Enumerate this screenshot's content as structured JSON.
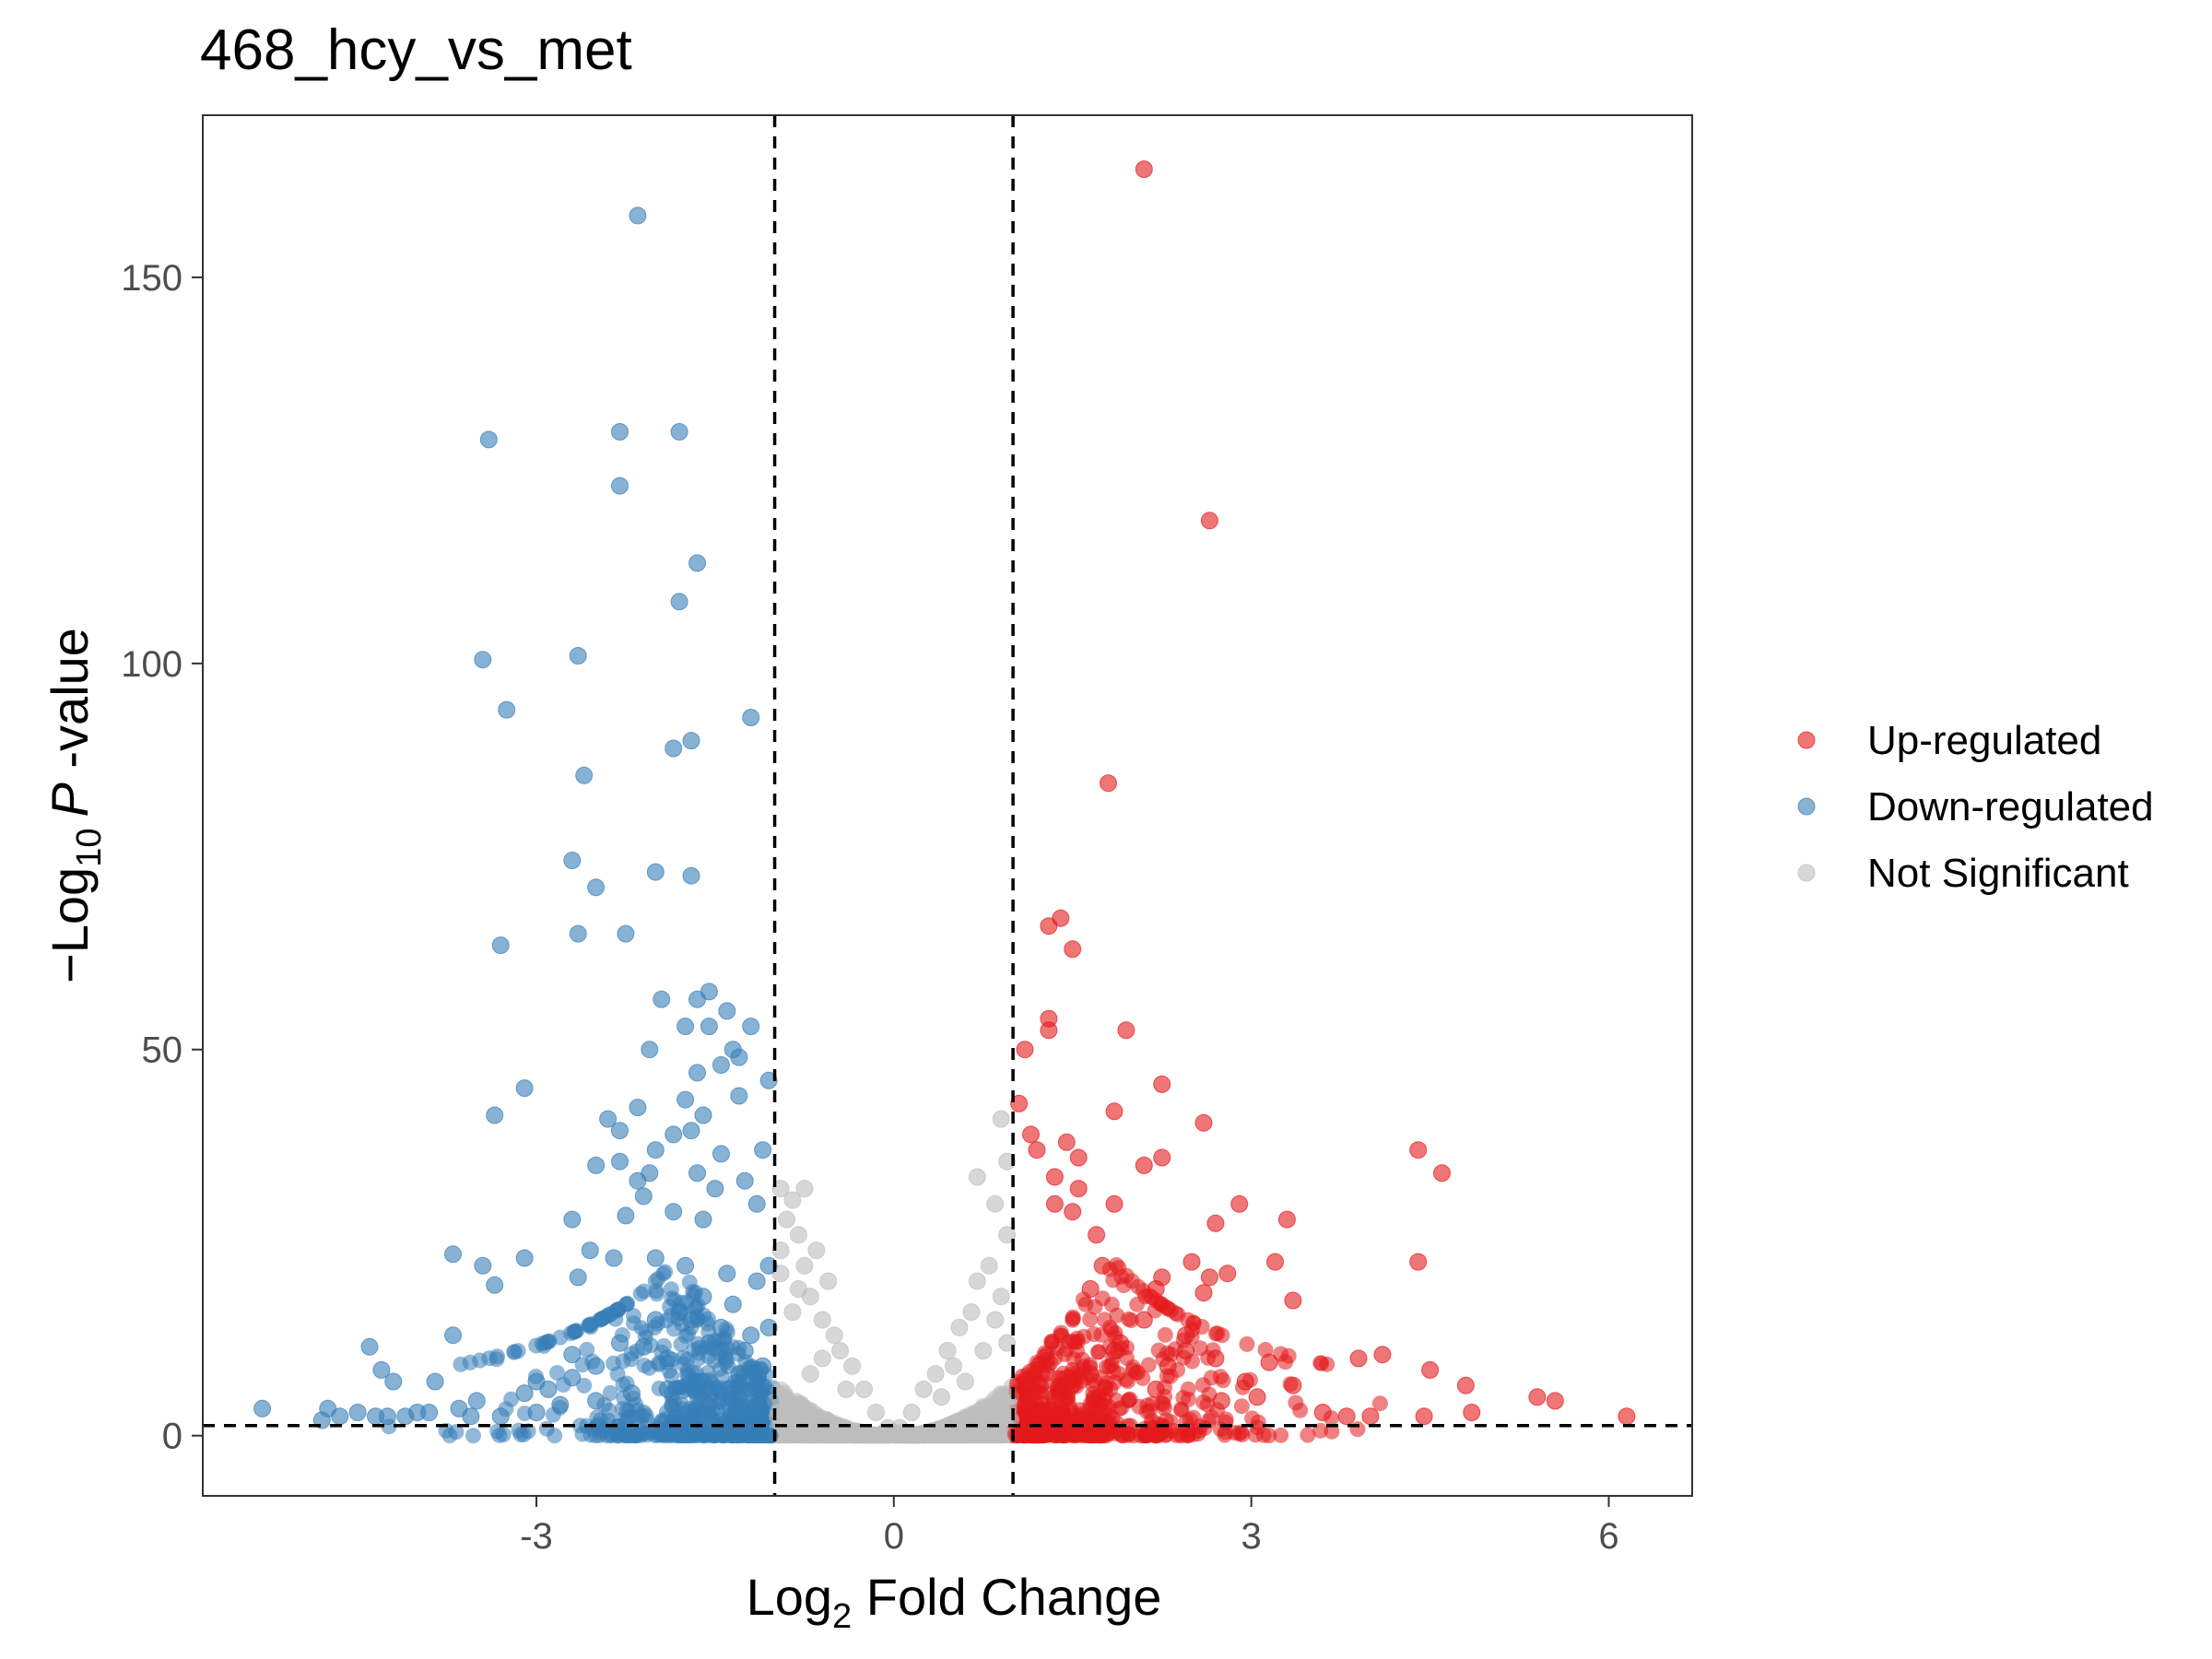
{
  "chart_data": {
    "type": "scatter",
    "title": "468_hcy_vs_met",
    "xlabel": {
      "prefix": "Log",
      "sub": "2",
      "suffix": " Fold Change"
    },
    "ylabel": {
      "prefix": "−Log",
      "sub": "10",
      "italic": "P",
      "suffix": " -value"
    },
    "xlim": [
      -5.8,
      6.7
    ],
    "ylim": [
      -7.8,
      171
    ],
    "xticks": [
      -3,
      0,
      3,
      6
    ],
    "xtick_labels": [
      "-3",
      "0",
      "3",
      "6"
    ],
    "yticks": [
      0,
      50,
      100,
      150
    ],
    "ytick_labels": [
      "0",
      "50",
      "100",
      "150"
    ],
    "fc_threshold": [
      -1,
      1
    ],
    "p_threshold": 1.3,
    "grid": false,
    "legend_position": "right",
    "colors": {
      "up": "#e41a1c",
      "down": "#377eb8",
      "ns": "#bdbdbd"
    },
    "series": [
      {
        "name": "Up-regulated",
        "key": "up",
        "points": [
          [
            2.1,
            164
          ],
          [
            2.65,
            118.5
          ],
          [
            1.8,
            84.5
          ],
          [
            1.4,
            67
          ],
          [
            1.3,
            66
          ],
          [
            1.5,
            63
          ],
          [
            1.3,
            54
          ],
          [
            1.3,
            52.5
          ],
          [
            1.95,
            52.5
          ],
          [
            1.1,
            50
          ],
          [
            2.25,
            45.5
          ],
          [
            1.05,
            43
          ],
          [
            2.6,
            40.5
          ],
          [
            1.85,
            42
          ],
          [
            1.15,
            39
          ],
          [
            1.2,
            37
          ],
          [
            1.45,
            38
          ],
          [
            1.55,
            36
          ],
          [
            2.1,
            35
          ],
          [
            2.25,
            36
          ],
          [
            4.4,
            37
          ],
          [
            4.6,
            34
          ],
          [
            1.35,
            33.5
          ],
          [
            1.55,
            32
          ],
          [
            1.85,
            30
          ],
          [
            2.9,
            30
          ],
          [
            1.35,
            30
          ],
          [
            1.5,
            29
          ],
          [
            3.3,
            28
          ],
          [
            2.7,
            27.5
          ],
          [
            1.7,
            26
          ],
          [
            4.4,
            22.5
          ],
          [
            3.2,
            22.5
          ],
          [
            2.5,
            22.5
          ],
          [
            1.75,
            22
          ],
          [
            2.25,
            20.5
          ],
          [
            2.8,
            21
          ],
          [
            2.2,
            19
          ],
          [
            2.65,
            20.5
          ],
          [
            3.35,
            17.5
          ],
          [
            2.6,
            18.5
          ],
          [
            1.65,
            19
          ],
          [
            4.1,
            10.5
          ],
          [
            2.45,
            11
          ],
          [
            3.9,
            10
          ],
          [
            4.5,
            8.5
          ],
          [
            4.8,
            6.5
          ],
          [
            5.4,
            5
          ],
          [
            5.55,
            4.5
          ],
          [
            6.15,
            2.5
          ],
          [
            3.6,
            3
          ],
          [
            3.8,
            2.5
          ],
          [
            4.0,
            2.5
          ],
          [
            4.45,
            2.5
          ],
          [
            4.85,
            3
          ],
          [
            3.05,
            5
          ],
          [
            2.95,
            7
          ],
          [
            3.35,
            6.5
          ],
          [
            2.75,
            4.5
          ],
          [
            2.2,
            6
          ],
          [
            1.65,
            8
          ],
          [
            1.9,
            12
          ],
          [
            2.3,
            9
          ],
          [
            3.15,
            9.5
          ],
          [
            2.7,
            10
          ],
          [
            2.1,
            15
          ],
          [
            1.85,
            11
          ],
          [
            2.45,
            13
          ]
        ]
      },
      {
        "name": "Down-regulated",
        "key": "down",
        "points": [
          [
            -2.15,
            158
          ],
          [
            -2.3,
            130
          ],
          [
            -1.8,
            130
          ],
          [
            -3.4,
            129
          ],
          [
            -2.3,
            123
          ],
          [
            -1.65,
            113
          ],
          [
            -1.8,
            108
          ],
          [
            -3.45,
            100.5
          ],
          [
            -2.65,
            101
          ],
          [
            -3.25,
            94
          ],
          [
            -1.2,
            93
          ],
          [
            -1.7,
            90
          ],
          [
            -1.85,
            89
          ],
          [
            -2.6,
            85.5
          ],
          [
            -2.7,
            74.5
          ],
          [
            -2.0,
            73
          ],
          [
            -1.7,
            72.5
          ],
          [
            -2.5,
            71
          ],
          [
            -2.65,
            65
          ],
          [
            -2.25,
            65
          ],
          [
            -3.3,
            63.5
          ],
          [
            -1.55,
            57.5
          ],
          [
            -1.95,
            56.5
          ],
          [
            -1.65,
            56.5
          ],
          [
            -1.4,
            55
          ],
          [
            -1.75,
            53
          ],
          [
            -1.55,
            53
          ],
          [
            -1.2,
            53
          ],
          [
            -1.35,
            50
          ],
          [
            -2.05,
            50
          ],
          [
            -1.65,
            47
          ],
          [
            -1.45,
            48
          ],
          [
            -1.3,
            49
          ],
          [
            -3.1,
            45
          ],
          [
            -1.05,
            46
          ],
          [
            -1.3,
            44
          ],
          [
            -1.75,
            43.5
          ],
          [
            -2.15,
            42.5
          ],
          [
            -3.35,
            41.5
          ],
          [
            -1.6,
            41.5
          ],
          [
            -2.4,
            41
          ],
          [
            -1.7,
            39.5
          ],
          [
            -2.3,
            39.5
          ],
          [
            -1.85,
            39
          ],
          [
            -1.1,
            37
          ],
          [
            -2.0,
            37
          ],
          [
            -1.45,
            36.5
          ],
          [
            -2.5,
            35
          ],
          [
            -2.3,
            35.5
          ],
          [
            -1.65,
            34
          ],
          [
            -2.05,
            34
          ],
          [
            -1.25,
            33
          ],
          [
            -2.15,
            33
          ],
          [
            -1.5,
            32
          ],
          [
            -2.1,
            31
          ],
          [
            -1.15,
            30
          ],
          [
            -2.7,
            28
          ],
          [
            -1.85,
            29
          ],
          [
            -2.25,
            28.5
          ],
          [
            -1.6,
            28
          ],
          [
            -2.55,
            24
          ],
          [
            -3.7,
            23.5
          ],
          [
            -3.1,
            23
          ],
          [
            -2.0,
            23
          ],
          [
            -2.35,
            23
          ],
          [
            -3.45,
            22
          ],
          [
            -1.75,
            22
          ],
          [
            -2.65,
            20.5
          ],
          [
            -3.35,
            19.5
          ],
          [
            -4.4,
            11.5
          ],
          [
            -3.7,
            13
          ],
          [
            -4.3,
            8.5
          ],
          [
            -4.2,
            7
          ],
          [
            -3.85,
            7
          ],
          [
            -3.0,
            7
          ],
          [
            -2.7,
            7.5
          ],
          [
            -3.1,
            5.5
          ],
          [
            -3.5,
            4.5
          ],
          [
            -3.65,
            3.5
          ],
          [
            -3.9,
            3
          ],
          [
            -4.1,
            2.5
          ],
          [
            -4.25,
            2.5
          ],
          [
            -4.5,
            3
          ],
          [
            -4.65,
            2.5
          ],
          [
            -4.75,
            3.5
          ],
          [
            -4.8,
            2
          ],
          [
            -5.3,
            3.5
          ],
          [
            -4.35,
            2.5
          ],
          [
            -4.0,
            3
          ],
          [
            -3.55,
            2.5
          ],
          [
            -3.3,
            2.5
          ],
          [
            -3.0,
            3
          ],
          [
            -2.8,
            4
          ],
          [
            -2.5,
            4.5
          ],
          [
            -2.2,
            5.5
          ],
          [
            -1.9,
            6
          ],
          [
            -1.6,
            7
          ],
          [
            -1.3,
            8
          ],
          [
            -1.1,
            9
          ],
          [
            -1.25,
            11
          ],
          [
            -1.55,
            12
          ],
          [
            -1.9,
            10
          ],
          [
            -2.1,
            11.5
          ],
          [
            -2.5,
            9
          ],
          [
            -1.45,
            14
          ],
          [
            -1.7,
            15
          ],
          [
            -1.2,
            13
          ],
          [
            -1.05,
            14
          ],
          [
            -1.35,
            17
          ],
          [
            -1.6,
            18
          ],
          [
            -2.0,
            15
          ],
          [
            -2.3,
            12
          ],
          [
            -1.15,
            20
          ],
          [
            -1.4,
            21
          ],
          [
            -1.05,
            22
          ],
          [
            -1.8,
            16
          ],
          [
            -2.7,
            10.5
          ],
          [
            -2.9,
            6
          ]
        ]
      },
      {
        "name": "Not Significant",
        "key": "ns",
        "points": [
          [
            -0.95,
            32
          ],
          [
            -0.85,
            30.5
          ],
          [
            -0.75,
            32
          ],
          [
            -0.9,
            28
          ],
          [
            -0.8,
            26
          ],
          [
            -0.65,
            24
          ],
          [
            -0.75,
            22
          ],
          [
            -0.55,
            20
          ],
          [
            -0.7,
            18
          ],
          [
            -0.85,
            16
          ],
          [
            -0.6,
            15
          ],
          [
            -0.5,
            13
          ],
          [
            -0.45,
            11
          ],
          [
            -0.35,
            9
          ],
          [
            -0.25,
            6
          ],
          [
            -0.15,
            3
          ],
          [
            0.9,
            41
          ],
          [
            0.95,
            35.5
          ],
          [
            0.7,
            33.5
          ],
          [
            0.85,
            30
          ],
          [
            0.95,
            26
          ],
          [
            0.8,
            22
          ],
          [
            0.7,
            20
          ],
          [
            0.9,
            18
          ],
          [
            0.65,
            16
          ],
          [
            0.55,
            14
          ],
          [
            0.45,
            11
          ],
          [
            0.35,
            8
          ],
          [
            0.25,
            6
          ],
          [
            0.15,
            3
          ],
          [
            0.05,
            1
          ],
          [
            -0.05,
            1
          ],
          [
            -0.95,
            24
          ],
          [
            -0.95,
            21
          ],
          [
            -0.8,
            19
          ],
          [
            0.85,
            15
          ],
          [
            0.95,
            12
          ],
          [
            0.75,
            11
          ],
          [
            -0.6,
            10
          ],
          [
            -0.7,
            8
          ],
          [
            -0.4,
            6
          ],
          [
            0.4,
            5
          ],
          [
            0.6,
            7
          ],
          [
            0.5,
            9
          ]
        ]
      }
    ]
  },
  "legend": {
    "items": [
      {
        "label": "Up-regulated",
        "key": "up"
      },
      {
        "label": "Down-regulated",
        "key": "down"
      },
      {
        "label": "Not Significant",
        "key": "ns"
      }
    ]
  }
}
